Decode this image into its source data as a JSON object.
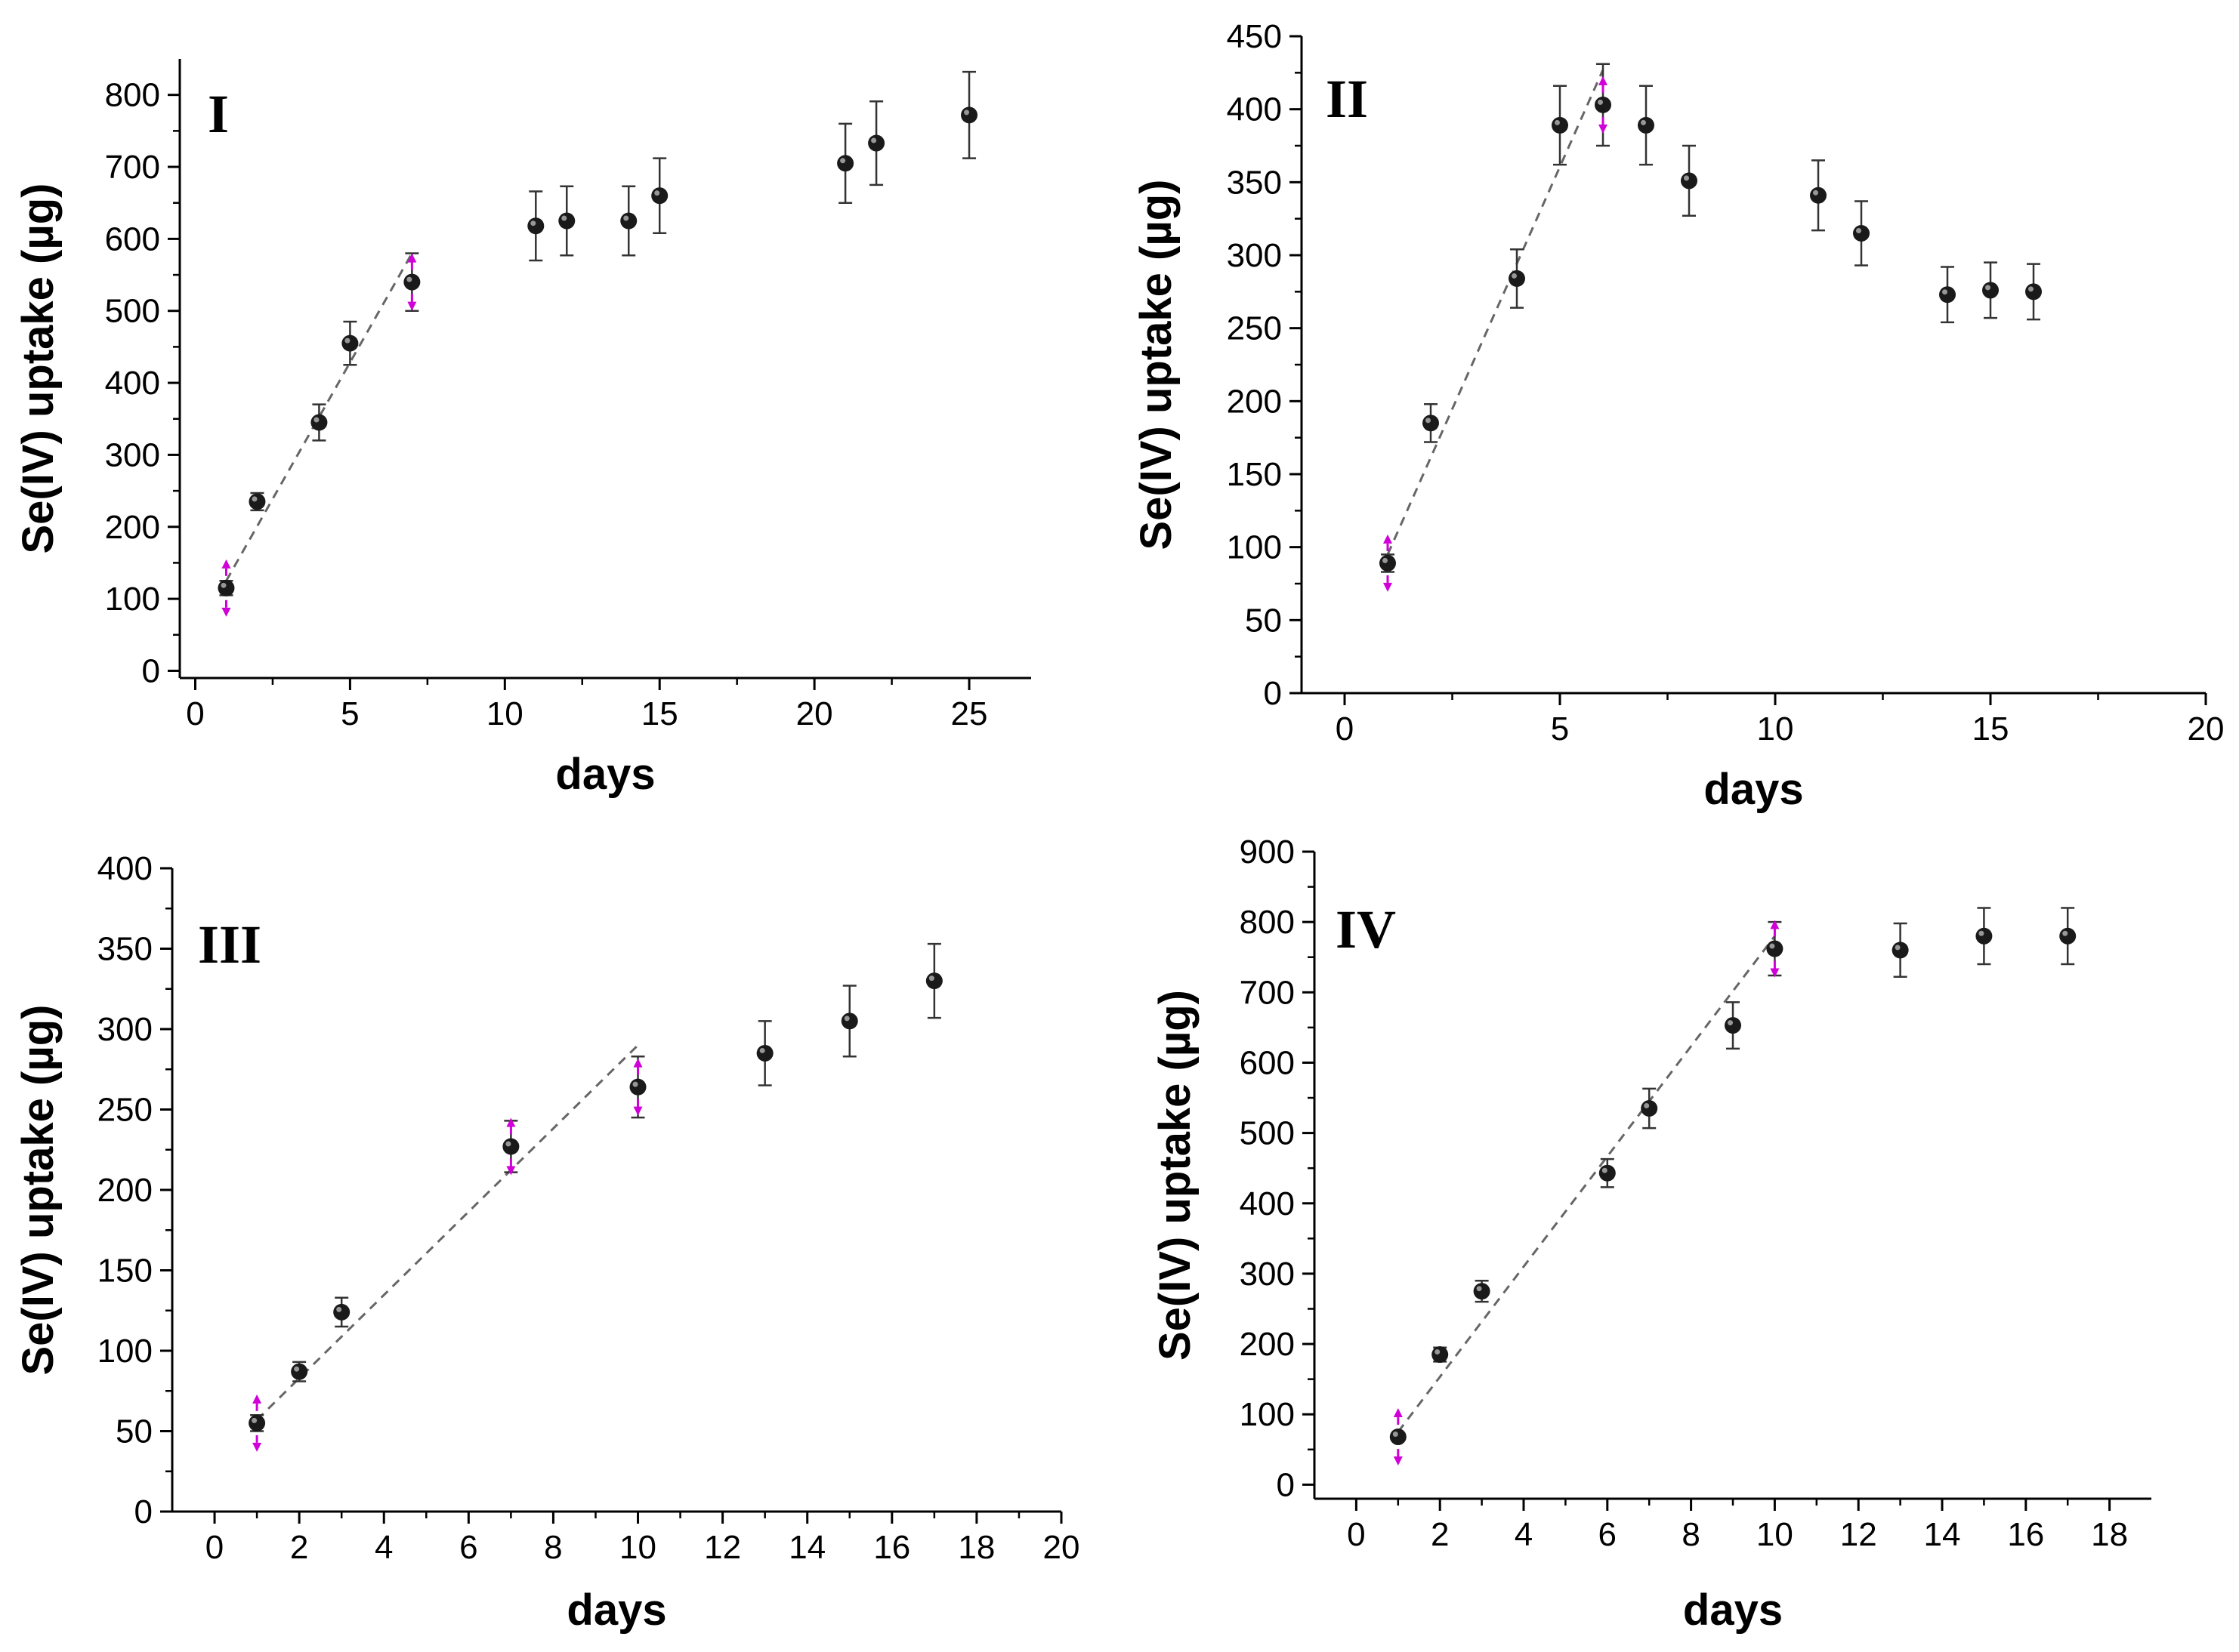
{
  "chart_data": [
    {
      "type": "scatter",
      "panel": "I",
      "xlabel": "days",
      "ylabel": "Se(IV) uptake (µg)",
      "xlim": [
        -0.5,
        27
      ],
      "ylim": [
        -10,
        850
      ],
      "xticks": [
        0,
        5,
        10,
        15,
        20,
        25
      ],
      "xtick_labels": [
        "0",
        "5",
        "10",
        "15",
        "20",
        "25"
      ],
      "yticks": [
        0,
        100,
        200,
        300,
        400,
        500,
        600,
        700,
        800
      ],
      "ytick_labels": [
        "0",
        "100",
        "200",
        "300",
        "400",
        "500",
        "600",
        "700",
        "800"
      ],
      "x": [
        1,
        2,
        4,
        5,
        7,
        11,
        12,
        14,
        15,
        21,
        22,
        25
      ],
      "y": [
        115,
        235,
        345,
        455,
        540,
        618,
        625,
        625,
        660,
        705,
        733,
        772
      ],
      "yerr": [
        10,
        12,
        25,
        30,
        40,
        48,
        48,
        48,
        52,
        55,
        58,
        60
      ],
      "fit_line": {
        "x": [
          1,
          7
        ],
        "y": [
          125,
          580
        ]
      },
      "marked_points": [
        1,
        7
      ]
    },
    {
      "type": "scatter",
      "panel": "II",
      "xlabel": "days",
      "ylabel": "Se(IV) uptake (µg)",
      "xlim": [
        -1,
        20
      ],
      "ylim": [
        0,
        450
      ],
      "xticks": [
        0,
        5,
        10,
        15,
        20
      ],
      "xtick_labels": [
        "0",
        "5",
        "10",
        "15",
        "20"
      ],
      "yticks": [
        0,
        50,
        100,
        150,
        200,
        250,
        300,
        350,
        400,
        450
      ],
      "ytick_labels": [
        "0",
        "50",
        "100",
        "150",
        "200",
        "250",
        "300",
        "350",
        "400",
        "450"
      ],
      "x": [
        1,
        2,
        4,
        5,
        6,
        7,
        8,
        11,
        12,
        14,
        15,
        16
      ],
      "y": [
        89,
        185,
        284,
        389,
        403,
        389,
        351,
        341,
        315,
        273,
        276,
        275
      ],
      "yerr": [
        6,
        13,
        20,
        27,
        28,
        27,
        24,
        24,
        22,
        19,
        19,
        19
      ],
      "fit_line": {
        "x": [
          1,
          6
        ],
        "y": [
          95,
          427
        ]
      },
      "marked_points": [
        1,
        6
      ]
    },
    {
      "type": "scatter",
      "panel": "III",
      "xlabel": "days",
      "ylabel": "Se(IV) uptake (µg)",
      "xlim": [
        -1,
        20
      ],
      "ylim": [
        0,
        400
      ],
      "xticks": [
        0,
        2,
        4,
        6,
        8,
        10,
        12,
        14,
        16,
        18,
        20
      ],
      "xtick_labels": [
        "0",
        "2",
        "4",
        "6",
        "8",
        "10",
        "12",
        "14",
        "16",
        "18",
        "20"
      ],
      "yticks": [
        0,
        50,
        100,
        150,
        200,
        250,
        300,
        350,
        400
      ],
      "ytick_labels": [
        "0",
        "50",
        "100",
        "150",
        "200",
        "250",
        "300",
        "350",
        "400"
      ],
      "x": [
        1,
        2,
        3,
        7,
        10,
        13,
        15,
        17
      ],
      "y": [
        55,
        87,
        124,
        227,
        264,
        285,
        305,
        330
      ],
      "yerr": [
        5,
        6,
        9,
        16,
        19,
        20,
        22,
        23
      ],
      "fit_line": {
        "x": [
          1,
          10
        ],
        "y": [
          57,
          290
        ]
      },
      "marked_points": [
        1,
        7,
        10
      ]
    },
    {
      "type": "scatter",
      "panel": "IV",
      "xlabel": "days",
      "ylabel": "Se(IV) uptake (µg)",
      "xlim": [
        -1,
        19
      ],
      "ylim": [
        -20,
        900
      ],
      "xticks": [
        0,
        2,
        4,
        6,
        8,
        10,
        12,
        14,
        16,
        18
      ],
      "xtick_labels": [
        "0",
        "2",
        "4",
        "6",
        "8",
        "10",
        "12",
        "14",
        "16",
        "18"
      ],
      "yticks": [
        0,
        100,
        200,
        300,
        400,
        500,
        600,
        700,
        800,
        900
      ],
      "ytick_labels": [
        "0",
        "100",
        "200",
        "300",
        "400",
        "500",
        "600",
        "700",
        "800",
        "900"
      ],
      "x": [
        1,
        2,
        3,
        6,
        7,
        9,
        10,
        13,
        15,
        17
      ],
      "y": [
        68,
        185,
        275,
        443,
        535,
        653,
        762,
        760,
        780,
        780
      ],
      "yerr": [
        5,
        10,
        15,
        20,
        28,
        33,
        38,
        38,
        40,
        40
      ],
      "fit_line": {
        "x": [
          1,
          10
        ],
        "y": [
          75,
          780
        ]
      },
      "marked_points": [
        1,
        10
      ]
    }
  ]
}
